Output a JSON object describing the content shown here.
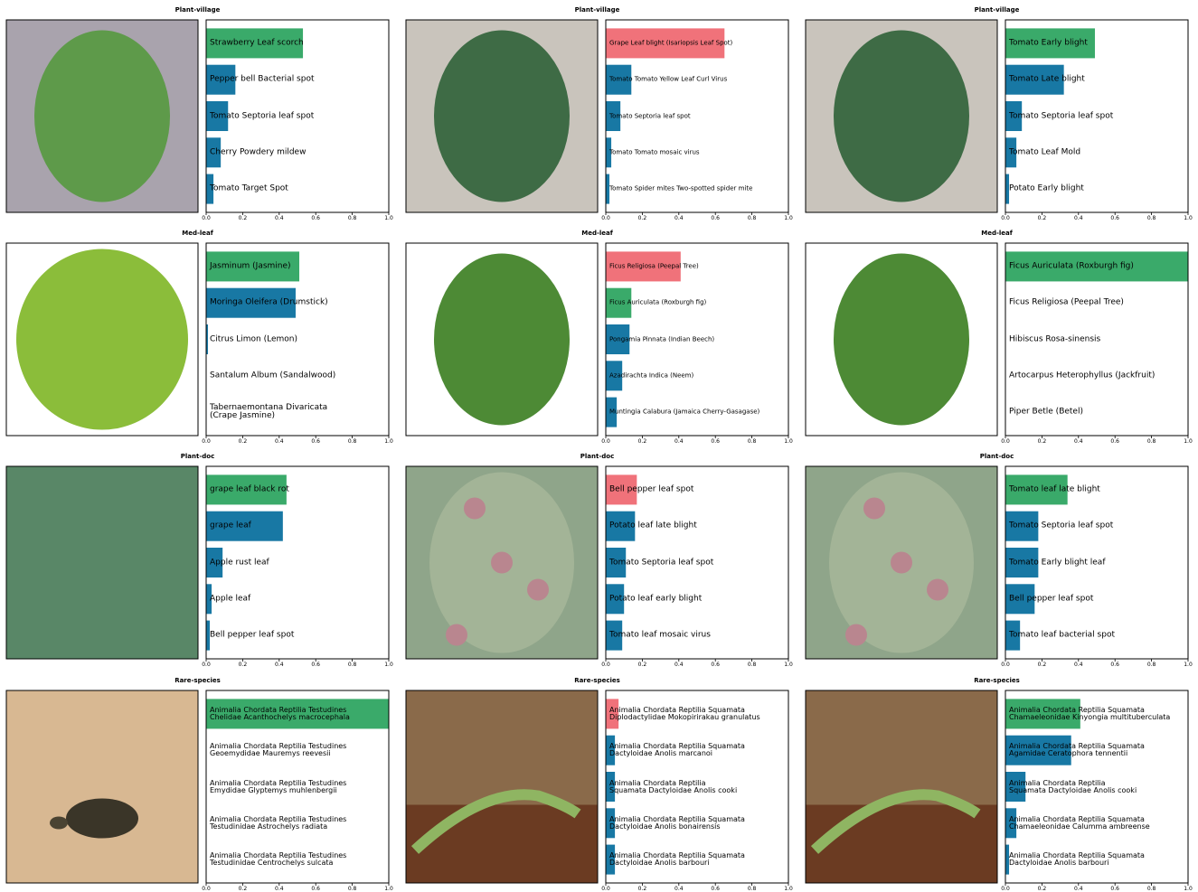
{
  "chart_data": [
    {
      "type": "bar",
      "title": "Plant-village",
      "categories": [
        "Strawberry Leaf scorch",
        "Pepper bell Bacterial spot",
        "Tomato Septoria leaf spot",
        "Cherry Powdery mildew",
        "Tomato Target Spot"
      ],
      "values": [
        0.53,
        0.16,
        0.12,
        0.08,
        0.04
      ],
      "colors": [
        "#3aaa6a",
        "#1878a4",
        "#1878a4",
        "#1878a4",
        "#1878a4"
      ],
      "xlim": [
        0,
        1
      ],
      "xticks": [
        {
          "value": 0,
          "label": "0.0"
        },
        {
          "value": 0.2,
          "label": "0.2"
        },
        {
          "value": 0.4,
          "label": "0.4"
        },
        {
          "value": 0.6,
          "label": "0.6"
        },
        {
          "value": 0.8,
          "label": "0.8"
        },
        {
          "value": 1,
          "label": "1.0"
        }
      ]
    },
    {
      "type": "bar",
      "title": "Plant-village",
      "categories": [
        "Grape Leaf blight (Isariopsis Leaf Spot)",
        "Tomato Tomato Yellow Leaf Curl Virus",
        "Tomato Septoria leaf spot",
        "Tomato Tomato mosaic virus",
        "Tomato Spider mites Two-spotted spider mite"
      ],
      "values": [
        0.65,
        0.14,
        0.08,
        0.03,
        0.02
      ],
      "colors": [
        "#f0727a",
        "#1878a4",
        "#1878a4",
        "#1878a4",
        "#1878a4"
      ],
      "xlim": [
        0,
        1
      ],
      "xticks": [
        {
          "value": 0,
          "label": "0.0"
        },
        {
          "value": 0.2,
          "label": "0.2"
        },
        {
          "value": 0.4,
          "label": "0.4"
        },
        {
          "value": 0.6,
          "label": "0.6"
        },
        {
          "value": 0.8,
          "label": "0.8"
        },
        {
          "value": 1,
          "label": "1.0"
        }
      ]
    },
    {
      "type": "bar",
      "title": "Plant-village",
      "categories": [
        "Tomato Early blight",
        "Tomato Late blight",
        "Tomato Septoria leaf spot",
        "Tomato Leaf Mold",
        "Potato Early blight"
      ],
      "values": [
        0.49,
        0.32,
        0.09,
        0.06,
        0.02
      ],
      "colors": [
        "#3aaa6a",
        "#1878a4",
        "#1878a4",
        "#1878a4",
        "#1878a4"
      ],
      "xlim": [
        0,
        1
      ],
      "xticks": [
        {
          "value": 0,
          "label": "0.0"
        },
        {
          "value": 0.2,
          "label": "0.2"
        },
        {
          "value": 0.4,
          "label": "0.4"
        },
        {
          "value": 0.6,
          "label": "0.6"
        },
        {
          "value": 0.8,
          "label": "0.8"
        },
        {
          "value": 1,
          "label": "1.0"
        }
      ]
    },
    {
      "type": "bar",
      "title": "Med-leaf",
      "categories": [
        "Jasminum (Jasmine)",
        "Moringa Oleifera (Drumstick)",
        "Citrus Limon (Lemon)",
        "Santalum Album (Sandalwood)",
        "Tabernaemontana Divaricata\n(Crape Jasmine)"
      ],
      "values": [
        0.51,
        0.49,
        0.01,
        0,
        0
      ],
      "colors": [
        "#3aaa6a",
        "#1878a4",
        "#1878a4",
        "#1878a4",
        "#1878a4"
      ],
      "xlim": [
        0,
        1
      ],
      "xticks": [
        {
          "value": 0,
          "label": "0.0"
        },
        {
          "value": 0.2,
          "label": "0.2"
        },
        {
          "value": 0.4,
          "label": "0.4"
        },
        {
          "value": 0.6,
          "label": "0.6"
        },
        {
          "value": 0.8,
          "label": "0.8"
        },
        {
          "value": 1,
          "label": "1.0"
        }
      ]
    },
    {
      "type": "bar",
      "title": "Med-leaf",
      "categories": [
        "Ficus Religiosa (Peepal Tree)",
        "Ficus Auriculata (Roxburgh fig)",
        "Pongamia Pinnata (Indian Beech)",
        "Azadirachta Indica (Neem)",
        "Muntingia Calabura (Jamaica Cherry-Gasagase)"
      ],
      "values": [
        0.41,
        0.14,
        0.13,
        0.09,
        0.06
      ],
      "colors": [
        "#f0727a",
        "#3aaa6a",
        "#1878a4",
        "#1878a4",
        "#1878a4"
      ],
      "xlim": [
        0,
        1
      ],
      "xticks": [
        {
          "value": 0,
          "label": "0.0"
        },
        {
          "value": 0.2,
          "label": "0.2"
        },
        {
          "value": 0.4,
          "label": "0.4"
        },
        {
          "value": 0.6,
          "label": "0.6"
        },
        {
          "value": 0.8,
          "label": "0.8"
        },
        {
          "value": 1,
          "label": "1.0"
        }
      ]
    },
    {
      "type": "bar",
      "title": "Med-leaf",
      "categories": [
        "Ficus Auriculata (Roxburgh fig)",
        "Ficus Religiosa (Peepal Tree)",
        "Hibiscus Rosa-sinensis",
        "Artocarpus Heterophyllus (Jackfruit)",
        "Piper Betle (Betel)"
      ],
      "values": [
        1,
        0,
        0,
        0,
        0
      ],
      "colors": [
        "#3aaa6a",
        "#1878a4",
        "#1878a4",
        "#1878a4",
        "#1878a4"
      ],
      "xlim": [
        0,
        1
      ],
      "xticks": [
        {
          "value": 0,
          "label": "0.0"
        },
        {
          "value": 0.2,
          "label": "0.2"
        },
        {
          "value": 0.4,
          "label": "0.4"
        },
        {
          "value": 0.6,
          "label": "0.6"
        },
        {
          "value": 0.8,
          "label": "0.8"
        },
        {
          "value": 1,
          "label": "1.0"
        }
      ]
    },
    {
      "type": "bar",
      "title": "Plant-doc",
      "categories": [
        "grape leaf black rot",
        "grape leaf",
        "Apple rust leaf",
        "Apple leaf",
        "Bell pepper leaf spot"
      ],
      "values": [
        0.44,
        0.42,
        0.09,
        0.03,
        0.02
      ],
      "colors": [
        "#3aaa6a",
        "#1878a4",
        "#1878a4",
        "#1878a4",
        "#1878a4"
      ],
      "xlim": [
        0,
        1
      ],
      "xticks": [
        {
          "value": 0,
          "label": "0.0"
        },
        {
          "value": 0.2,
          "label": "0.2"
        },
        {
          "value": 0.4,
          "label": "0.4"
        },
        {
          "value": 0.6,
          "label": "0.6"
        },
        {
          "value": 0.8,
          "label": "0.8"
        },
        {
          "value": 1,
          "label": "1.0"
        }
      ]
    },
    {
      "type": "bar",
      "title": "Plant-doc",
      "categories": [
        "Bell pepper leaf spot",
        "Potato leaf late blight",
        "Tomato Septoria leaf spot",
        "Potato leaf early blight",
        "Tomato leaf mosaic virus"
      ],
      "values": [
        0.17,
        0.16,
        0.11,
        0.1,
        0.09
      ],
      "colors": [
        "#f0727a",
        "#1878a4",
        "#1878a4",
        "#1878a4",
        "#1878a4"
      ],
      "xlim": [
        0,
        1
      ],
      "xticks": [
        {
          "value": 0,
          "label": "0.0"
        },
        {
          "value": 0.2,
          "label": "0.2"
        },
        {
          "value": 0.4,
          "label": "0.4"
        },
        {
          "value": 0.6,
          "label": "0.6"
        },
        {
          "value": 0.8,
          "label": "0.8"
        },
        {
          "value": 1,
          "label": "1.0"
        }
      ]
    },
    {
      "type": "bar",
      "title": "Plant-doc",
      "categories": [
        "Tomato leaf late blight",
        "Tomato Septoria leaf spot",
        "Tomato Early blight leaf",
        "Bell pepper leaf spot",
        "Tomato leaf bacterial spot"
      ],
      "values": [
        0.34,
        0.18,
        0.18,
        0.16,
        0.08
      ],
      "colors": [
        "#3aaa6a",
        "#1878a4",
        "#1878a4",
        "#1878a4",
        "#1878a4"
      ],
      "xlim": [
        0,
        1
      ],
      "xticks": [
        {
          "value": 0,
          "label": "0.0"
        },
        {
          "value": 0.2,
          "label": "0.2"
        },
        {
          "value": 0.4,
          "label": "0.4"
        },
        {
          "value": 0.6,
          "label": "0.6"
        },
        {
          "value": 0.8,
          "label": "0.8"
        },
        {
          "value": 1,
          "label": "1.0"
        }
      ]
    },
    {
      "type": "bar",
      "title": "Rare-species",
      "categories": [
        "Animalia Chordata Reptilia Testudines\nChelidae Acanthochelys macrocephala",
        "Animalia Chordata Reptilia Testudines\nGeoemydidae Mauremys reevesii",
        "Animalia Chordata Reptilia Testudines\nEmydidae Glyptemys muhlenbergii",
        "Animalia Chordata Reptilia Testudines\nTestudinidae Astrochelys radiata",
        "Animalia Chordata Reptilia Testudines\nTestudinidae Centrochelys sulcata"
      ],
      "values": [
        1,
        0,
        0,
        0,
        0
      ],
      "colors": [
        "#3aaa6a",
        "#1878a4",
        "#1878a4",
        "#1878a4",
        "#1878a4"
      ],
      "xlim": [
        0,
        1
      ],
      "xticks": [
        {
          "value": 0,
          "label": "0.0"
        },
        {
          "value": 0.2,
          "label": "0.2"
        },
        {
          "value": 0.4,
          "label": "0.4"
        },
        {
          "value": 0.6,
          "label": "0.6"
        },
        {
          "value": 0.8,
          "label": "0.8"
        },
        {
          "value": 1,
          "label": "1.0"
        }
      ]
    },
    {
      "type": "bar",
      "title": "Rare-species",
      "categories": [
        "Animalia Chordata Reptilia Squamata\nDiplodactylidae Mokopirirakau granulatus",
        "Animalia Chordata Reptilia Squamata\nDactyloidae Anolis marcanoi",
        "Animalia Chordata Reptilia\nSquamata Dactyloidae Anolis cooki",
        "Animalia Chordata Reptilia Squamata\nDactyloidae Anolis bonairensis",
        "Animalia Chordata Reptilia Squamata\nDactyloidae Anolis barbouri"
      ],
      "values": [
        0.07,
        0.05,
        0.05,
        0.05,
        0.05
      ],
      "colors": [
        "#f0727a",
        "#1878a4",
        "#1878a4",
        "#1878a4",
        "#1878a4"
      ],
      "xlim": [
        0,
        1
      ],
      "xticks": [
        {
          "value": 0,
          "label": "0.0"
        },
        {
          "value": 0.2,
          "label": "0.2"
        },
        {
          "value": 0.4,
          "label": "0.4"
        },
        {
          "value": 0.6,
          "label": "0.6"
        },
        {
          "value": 0.8,
          "label": "0.8"
        },
        {
          "value": 1,
          "label": "1.0"
        }
      ]
    },
    {
      "type": "bar",
      "title": "Rare-species",
      "categories": [
        "Animalia Chordata Reptilia Squamata\nChamaeleonidae Kinyongia multituberculata",
        "Animalia Chordata Reptilia Squamata\nAgamidae Ceratophora tennentii",
        "Animalia Chordata Reptilia\nSquamata Dactyloidae Anolis cooki",
        "Animalia Chordata Reptilia Squamata\nChamaeleonidae Calumma ambreense",
        "Animalia Chordata Reptilia Squamata\nDactyloidae Anolis barbouri"
      ],
      "values": [
        0.41,
        0.36,
        0.11,
        0.06,
        0.02
      ],
      "colors": [
        "#3aaa6a",
        "#1878a4",
        "#1878a4",
        "#1878a4",
        "#1878a4"
      ],
      "xlim": [
        0,
        1
      ],
      "xticks": [
        {
          "value": 0,
          "label": "0.0"
        },
        {
          "value": 0.2,
          "label": "0.2"
        },
        {
          "value": 0.4,
          "label": "0.4"
        },
        {
          "value": 0.6,
          "label": "0.6"
        },
        {
          "value": 0.8,
          "label": "0.8"
        },
        {
          "value": 1,
          "label": "1.0"
        }
      ]
    }
  ]
}
